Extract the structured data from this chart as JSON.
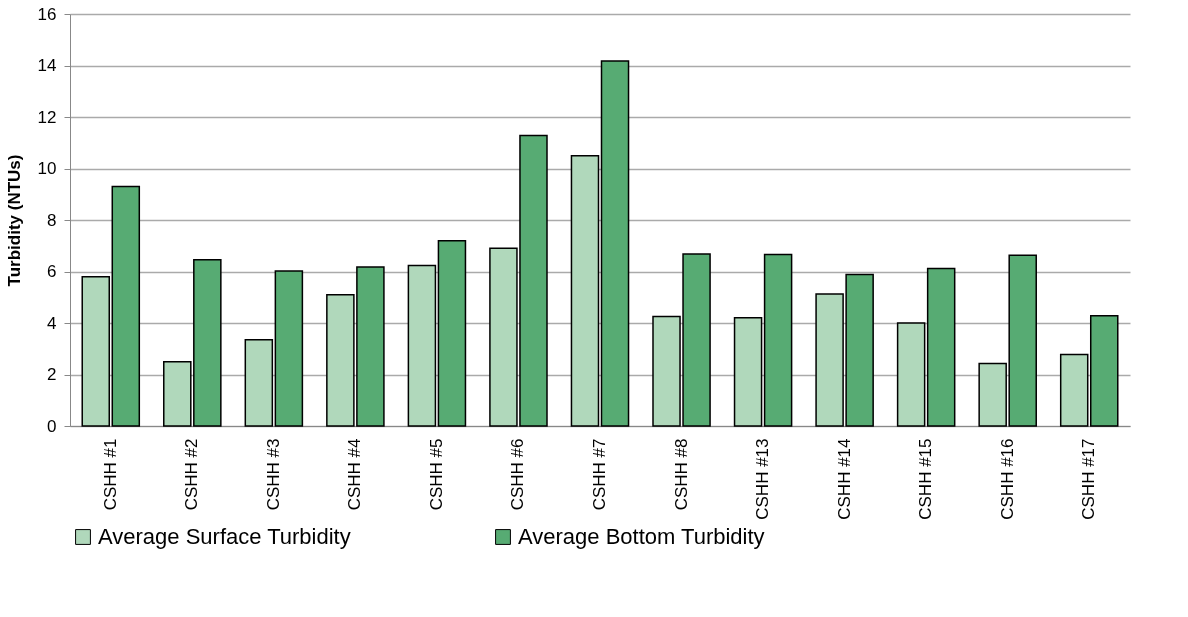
{
  "chart_data": {
    "type": "bar",
    "ylabel": "Turbidity (NTUs)",
    "categories": [
      "CSHH #1",
      "CSHH #2",
      "CSHH #3",
      "CSHH #4",
      "CSHH #5",
      "CSHH #6",
      "CSHH #7",
      "CSHH #8",
      "CSHH #13",
      "CSHH #14",
      "CSHH #15",
      "CSHH #16",
      "CSHH #17"
    ],
    "series": [
      {
        "name": "Average Surface Turbidity",
        "color": "#b0d8bb",
        "values": [
          5.8,
          2.5,
          3.35,
          5.1,
          6.23,
          6.9,
          10.5,
          4.25,
          4.2,
          5.13,
          4.0,
          2.43,
          2.78
        ]
      },
      {
        "name": "Average Bottom Turbidity",
        "color": "#57ab73",
        "values": [
          9.3,
          6.46,
          6.02,
          6.17,
          7.19,
          11.28,
          14.17,
          6.68,
          6.66,
          5.88,
          6.12,
          6.63,
          4.28
        ]
      }
    ],
    "ylim": [
      0,
      16
    ],
    "yticks": [
      0,
      2,
      4,
      6,
      8,
      10,
      12,
      14,
      16
    ],
    "grid": "y",
    "legend": "bottom"
  }
}
